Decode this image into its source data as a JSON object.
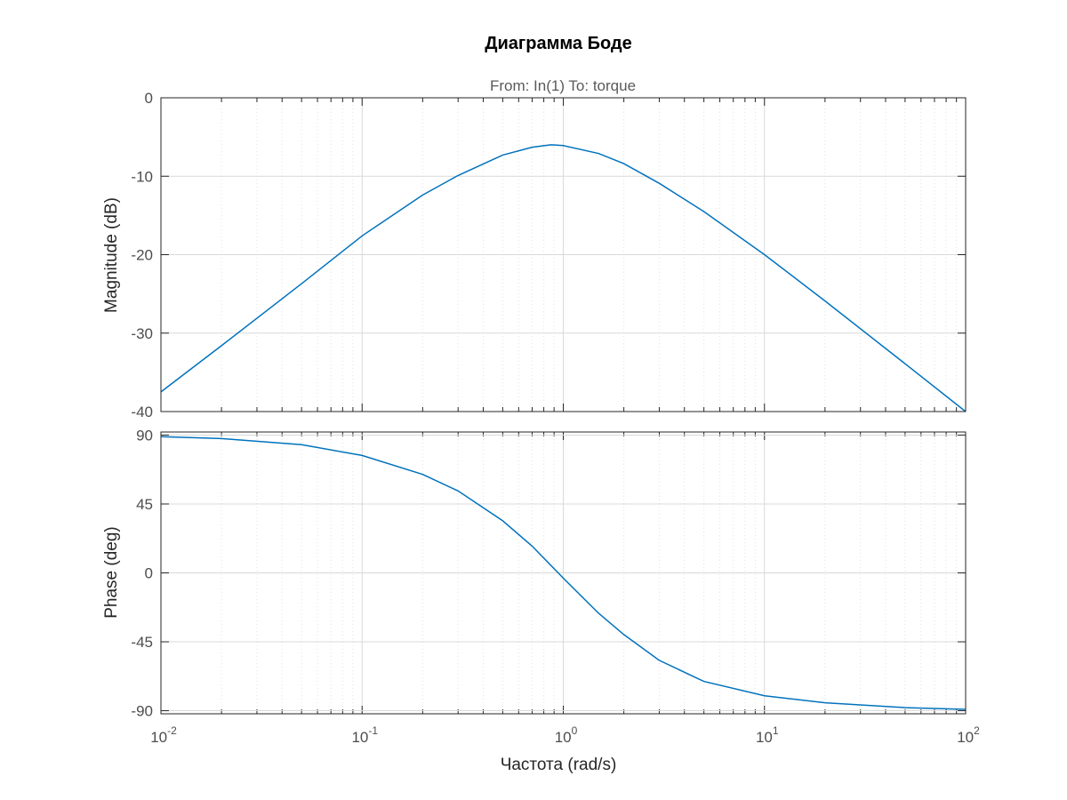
{
  "chart_data": [
    {
      "type": "line",
      "title": "Диаграмма Боде",
      "subtitle": "From: In(1)  To: torque",
      "xlabel": "Частота  (rad/s)",
      "ylabel": "Magnitude (dB)",
      "xscale": "log",
      "xlim": [
        0.01,
        100
      ],
      "ylim": [
        -40,
        0
      ],
      "yticks": [
        0,
        -10,
        -20,
        -30,
        -40
      ],
      "ytick_labels": [
        "0",
        "-10",
        "-20",
        "-30",
        "-40"
      ],
      "grid": true,
      "series": [
        {
          "color": "#0072bd",
          "x": [
            0.01,
            0.02,
            0.05,
            0.1,
            0.2,
            0.3,
            0.5,
            0.7,
            0.87,
            1,
            1.5,
            2,
            3,
            5,
            10,
            20,
            50,
            100
          ],
          "y": [
            -37.5,
            -31.6,
            -23.7,
            -17.6,
            -12.4,
            -9.9,
            -7.3,
            -6.3,
            -6.0,
            -6.1,
            -7.1,
            -8.4,
            -10.9,
            -14.5,
            -20.0,
            -25.9,
            -33.9,
            -40.0
          ]
        }
      ]
    },
    {
      "type": "line",
      "xlabel": "Частота  (rad/s)",
      "ylabel": "Phase (deg)",
      "xscale": "log",
      "xlim": [
        0.01,
        100
      ],
      "ylim": [
        -92,
        92
      ],
      "yticks": [
        90,
        45,
        0,
        -45,
        -90
      ],
      "ytick_labels": [
        "90",
        "45",
        "0",
        "-45",
        "-90"
      ],
      "xtick_base": "10",
      "xtick_exponents": [
        "-2",
        "-1",
        "0",
        "1",
        "2"
      ],
      "grid": true,
      "series": [
        {
          "color": "#0072bd",
          "x": [
            0.01,
            0.02,
            0.05,
            0.1,
            0.2,
            0.3,
            0.5,
            0.7,
            1,
            1.5,
            2,
            3,
            5,
            10,
            20,
            50,
            100
          ],
          "y": [
            88.9,
            87.7,
            83.7,
            76.7,
            64.3,
            53.5,
            34.0,
            17.5,
            -3.4,
            -26.4,
            -40.3,
            -57.1,
            -70.9,
            -80.2,
            -84.8,
            -88.0,
            -89.1
          ]
        }
      ]
    }
  ]
}
